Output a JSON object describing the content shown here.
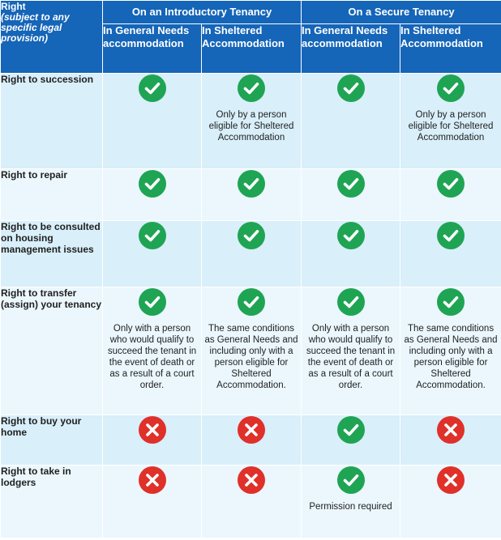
{
  "header": {
    "right_title": "Right",
    "right_subtitle": "(subject to any specific legal provision)",
    "groups": [
      "On an Introductory Tenancy",
      "On a Secure Tenancy"
    ],
    "subheads": [
      "In General Needs accommodation",
      "In Sheltered Accommodation",
      "In General Needs accommodation",
      "In Sheltered Accommodation"
    ]
  },
  "colors": {
    "header": "#1565b8",
    "check": "#1fa454",
    "cross": "#e0302a",
    "row_dark": "#d9effa",
    "row_light": "#ebf7fd"
  },
  "rows": [
    {
      "label": "Right to succession",
      "cells": [
        {
          "icon": "check-icon",
          "note": ""
        },
        {
          "icon": "check-icon",
          "note": "Only by a person eligible for Sheltered Accommodation"
        },
        {
          "icon": "check-icon",
          "note": ""
        },
        {
          "icon": "check-icon",
          "note": "Only by a person eligible for Sheltered Accommodation"
        }
      ]
    },
    {
      "label": "Right to repair",
      "cells": [
        {
          "icon": "check-icon",
          "note": ""
        },
        {
          "icon": "check-icon",
          "note": ""
        },
        {
          "icon": "check-icon",
          "note": ""
        },
        {
          "icon": "check-icon",
          "note": ""
        }
      ]
    },
    {
      "label": "Right to be consulted on housing management issues",
      "cells": [
        {
          "icon": "check-icon",
          "note": ""
        },
        {
          "icon": "check-icon",
          "note": ""
        },
        {
          "icon": "check-icon",
          "note": ""
        },
        {
          "icon": "check-icon",
          "note": ""
        }
      ]
    },
    {
      "label": "Right to transfer (assign) your tenancy",
      "cells": [
        {
          "icon": "check-icon",
          "note": "Only with a person who would qualify to succeed the tenant in the event of death or as a result of a court order."
        },
        {
          "icon": "check-icon",
          "note": "The same conditions as General Needs and including only with a person eligible for Sheltered Accommodation."
        },
        {
          "icon": "check-icon",
          "note": "Only with a person who would qualify to succeed the tenant in the event of death or as a result of a court order."
        },
        {
          "icon": "check-icon",
          "note": "The same conditions as General Needs and including only with a person eligible for Sheltered Accommodation."
        }
      ]
    },
    {
      "label": "Right to buy your home",
      "cells": [
        {
          "icon": "cross-icon",
          "note": ""
        },
        {
          "icon": "cross-icon",
          "note": ""
        },
        {
          "icon": "check-icon",
          "note": ""
        },
        {
          "icon": "cross-icon",
          "note": ""
        }
      ]
    },
    {
      "label": "Right to take in lodgers",
      "cells": [
        {
          "icon": "cross-icon",
          "note": ""
        },
        {
          "icon": "cross-icon",
          "note": ""
        },
        {
          "icon": "check-icon",
          "note": "Permission required"
        },
        {
          "icon": "cross-icon",
          "note": ""
        }
      ]
    }
  ]
}
